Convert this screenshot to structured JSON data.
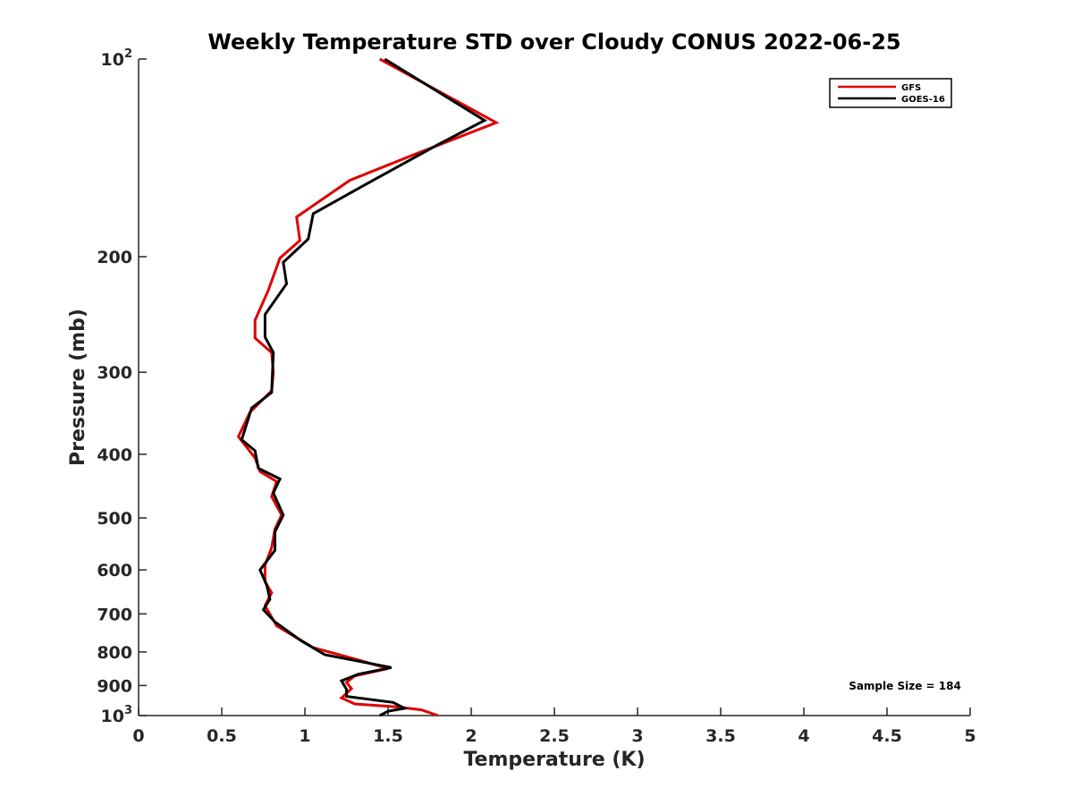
{
  "chart_data": {
    "type": "line",
    "title": "Weekly Temperature STD over Cloudy CONUS 2022-06-25",
    "xlabel": "Temperature (K)",
    "ylabel": "Pressure (mb)",
    "xlim": [
      0,
      5
    ],
    "ylim": [
      100,
      1000
    ],
    "yscale": "log",
    "y_reversed": true,
    "x_ticks": [
      "0",
      "0.5",
      "1",
      "1.5",
      "2",
      "2.5",
      "3",
      "3.5",
      "4",
      "4.5",
      "5"
    ],
    "y_ticks": [
      {
        "value": 100,
        "base": "10",
        "exp": "2"
      },
      {
        "value": 200,
        "label": "200"
      },
      {
        "value": 300,
        "label": "300"
      },
      {
        "value": 400,
        "label": "400"
      },
      {
        "value": 500,
        "label": "500"
      },
      {
        "value": 600,
        "label": "600"
      },
      {
        "value": 700,
        "label": "700"
      },
      {
        "value": 800,
        "label": "800"
      },
      {
        "value": 900,
        "label": "900"
      },
      {
        "value": 1000,
        "base": "10",
        "exp": "3"
      }
    ],
    "legend_position": "top-right",
    "annotation": "Sample Size = 184",
    "series": [
      {
        "name": "GFS",
        "color": "#e00000",
        "points": [
          [
            1.45,
            100
          ],
          [
            2.15,
            125
          ],
          [
            1.65,
            140
          ],
          [
            1.27,
            153
          ],
          [
            0.95,
            174
          ],
          [
            0.97,
            189
          ],
          [
            0.85,
            201
          ],
          [
            0.78,
            225
          ],
          [
            0.7,
            250
          ],
          [
            0.7,
            266
          ],
          [
            0.8,
            280
          ],
          [
            0.81,
            300
          ],
          [
            0.8,
            320
          ],
          [
            0.67,
            345
          ],
          [
            0.6,
            376
          ],
          [
            0.7,
            405
          ],
          [
            0.73,
            425
          ],
          [
            0.83,
            440
          ],
          [
            0.8,
            464
          ],
          [
            0.86,
            495
          ],
          [
            0.82,
            520
          ],
          [
            0.8,
            555
          ],
          [
            0.76,
            590
          ],
          [
            0.76,
            626
          ],
          [
            0.8,
            650
          ],
          [
            0.76,
            680
          ],
          [
            0.83,
            730
          ],
          [
            1.05,
            788
          ],
          [
            1.3,
            820
          ],
          [
            1.5,
            848
          ],
          [
            1.3,
            870
          ],
          [
            1.25,
            890
          ],
          [
            1.28,
            910
          ],
          [
            1.22,
            940
          ],
          [
            1.3,
            960
          ],
          [
            1.55,
            970
          ],
          [
            1.7,
            980
          ],
          [
            1.8,
            1000
          ]
        ]
      },
      {
        "name": "GOES-16",
        "color": "#000000",
        "points": [
          [
            1.48,
            100
          ],
          [
            2.08,
            124
          ],
          [
            1.8,
            135
          ],
          [
            1.37,
            155
          ],
          [
            1.05,
            172
          ],
          [
            1.02,
            188
          ],
          [
            0.87,
            204
          ],
          [
            0.89,
            220
          ],
          [
            0.76,
            245
          ],
          [
            0.76,
            265
          ],
          [
            0.81,
            280
          ],
          [
            0.8,
            322
          ],
          [
            0.68,
            340
          ],
          [
            0.62,
            380
          ],
          [
            0.7,
            395
          ],
          [
            0.72,
            420
          ],
          [
            0.85,
            436
          ],
          [
            0.81,
            458
          ],
          [
            0.87,
            495
          ],
          [
            0.82,
            525
          ],
          [
            0.82,
            560
          ],
          [
            0.73,
            600
          ],
          [
            0.77,
            632
          ],
          [
            0.79,
            665
          ],
          [
            0.75,
            690
          ],
          [
            0.82,
            720
          ],
          [
            0.98,
            770
          ],
          [
            1.12,
            808
          ],
          [
            1.52,
            845
          ],
          [
            1.32,
            865
          ],
          [
            1.22,
            885
          ],
          [
            1.25,
            912
          ],
          [
            1.25,
            935
          ],
          [
            1.53,
            955
          ],
          [
            1.6,
            975
          ],
          [
            1.5,
            985
          ],
          [
            1.45,
            1000
          ]
        ]
      }
    ]
  }
}
